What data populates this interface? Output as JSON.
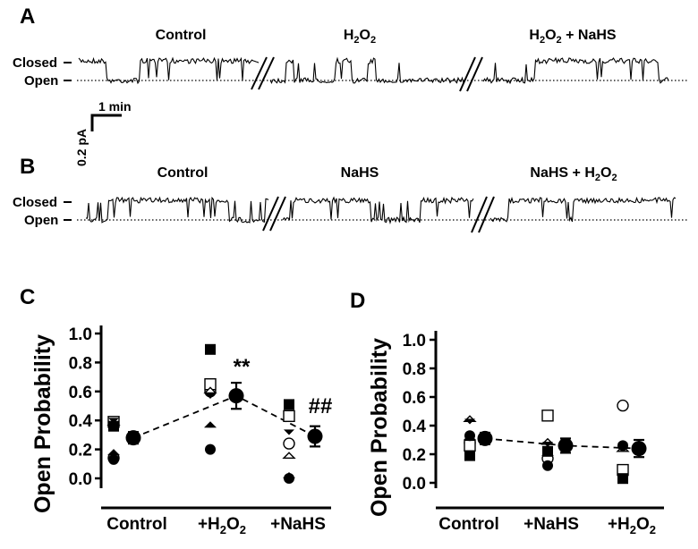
{
  "panels": {
    "A": {
      "letter": "A",
      "conditions": [
        "Control",
        "H2O2",
        "H2O2 + NaHS"
      ],
      "closed_label": "Closed",
      "open_label": "Open",
      "scale_time": "1 min",
      "scale_current": "0.2 pA"
    },
    "B": {
      "letter": "B",
      "conditions": [
        "Control",
        "NaHS",
        "NaHS + H2O2"
      ],
      "closed_label": "Closed",
      "open_label": "Open"
    }
  },
  "chart_data": [
    {
      "panel": "C",
      "type": "scatter",
      "ylabel": "Open Probability",
      "categories": [
        "Control",
        "+H2O2",
        "+NaHS"
      ],
      "yticks": [
        "0.0",
        "0.2",
        "0.4",
        "0.6",
        "0.8",
        "1.0"
      ],
      "ylim": [
        0,
        1
      ],
      "individual_points": [
        {
          "marker": "circle-filled",
          "values": [
            0.13,
            0.2,
            0.0
          ]
        },
        {
          "marker": "circle-open",
          "values": [
            0.14,
            0.6,
            0.24
          ]
        },
        {
          "marker": "square-filled",
          "values": [
            0.36,
            0.89,
            0.51
          ]
        },
        {
          "marker": "square-open",
          "values": [
            0.39,
            0.65,
            0.43
          ]
        },
        {
          "marker": "triangle-down-filled",
          "values": [
            0.38,
            0.55,
            0.3
          ]
        },
        {
          "marker": "triangle-open",
          "values": [
            0.37,
            0.59,
            0.14
          ]
        },
        {
          "marker": "diamond-filled",
          "values": [
            0.16,
            0.35,
            0.0
          ]
        }
      ],
      "mean": [
        0.28,
        0.57,
        0.29
      ],
      "sem": [
        0.04,
        0.09,
        0.07
      ],
      "annotations": [
        {
          "category": "+H2O2",
          "text": "**"
        },
        {
          "category": "+NaHS",
          "text": "##"
        }
      ]
    },
    {
      "panel": "D",
      "type": "scatter",
      "ylabel": "Open Probability",
      "categories": [
        "Control",
        "+NaHS",
        "+H2O2"
      ],
      "yticks": [
        "0.0",
        "0.2",
        "0.4",
        "0.6",
        "0.8",
        "1.0"
      ],
      "ylim": [
        0,
        1
      ],
      "individual_points": [
        {
          "marker": "circle-filled",
          "values": [
            0.33,
            0.12,
            0.26
          ]
        },
        {
          "marker": "circle-open",
          "values": [
            0.28,
            0.17,
            0.54
          ]
        },
        {
          "marker": "square-filled",
          "values": [
            0.19,
            0.22,
            0.03
          ]
        },
        {
          "marker": "square-open",
          "values": [
            0.26,
            0.47,
            0.09
          ]
        },
        {
          "marker": "triangle-down-filled",
          "values": [
            0.41,
            0.25,
            0.24
          ]
        },
        {
          "marker": "triangle-open",
          "values": [
            0.43,
            0.27,
            0.22
          ]
        },
        {
          "marker": "diamond-filled",
          "values": [
            0.3,
            0.19,
            0.24
          ]
        }
      ],
      "mean": [
        0.31,
        0.26,
        0.24
      ],
      "sem": [
        0.04,
        0.05,
        0.06
      ],
      "annotations": []
    }
  ]
}
